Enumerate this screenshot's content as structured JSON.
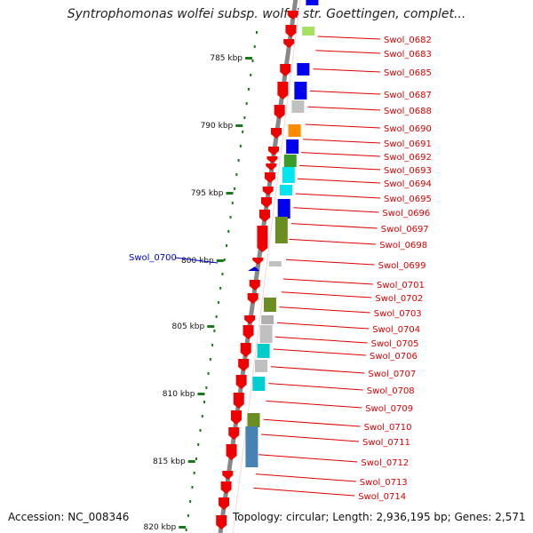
{
  "title": "Syntrophomonas wolfei subsp. wolfei str. Goettingen, complet...",
  "accession": "Accession: NC_008346",
  "topology": "Topology: circular; Length: 2,936,195 bp; Genes: 2,571",
  "colors": {
    "label_red": "#dd0000",
    "label_blue": "#0000cc",
    "tick_green": "#1a7a1a",
    "axis_gray": "#888888",
    "gene_red": "#ee0000"
  },
  "ruler_labels": [
    "785 kbp",
    "790 kbp",
    "795 kbp",
    "800 kbp",
    "805 kbp",
    "810 kbp",
    "815 kbp",
    "820 kbp"
  ],
  "highlight_gene": "Swol_0700",
  "gene_labels": [
    "Swol_0682",
    "Swol_0683",
    "Swol_0685",
    "Swol_0687",
    "Swol_0688",
    "Swol_0690",
    "Swol_0691",
    "Swol_0692",
    "Swol_0693",
    "Swol_0694",
    "Swol_0695",
    "Swol_0696",
    "Swol_0697",
    "Swol_0698",
    "Swol_0699",
    "Swol_0701",
    "Swol_0702",
    "Swol_0703",
    "Swol_0704",
    "Swol_0705",
    "Swol_0706",
    "Swol_0707",
    "Swol_0708",
    "Swol_0709",
    "Swol_0710",
    "Swol_0711",
    "Swol_0712",
    "Swol_0713",
    "Swol_0714"
  ],
  "ortholog_colors": [
    "#0000ee",
    "#a8e060",
    "#0000ee",
    "#0000ee",
    "#c0c0c0",
    "#ff8c00",
    "#0000ee",
    "#3a9a2a",
    "#00e5ee",
    "#00e5ee",
    "#0000ee",
    "#6b8e23",
    "#c0c0c0",
    "#6b8e23",
    "#b0b0b0",
    "#c0c0c0",
    "#00cccc",
    "#c0c0c0",
    "#00ced1",
    "#6b8e23",
    "#4682b4"
  ]
}
